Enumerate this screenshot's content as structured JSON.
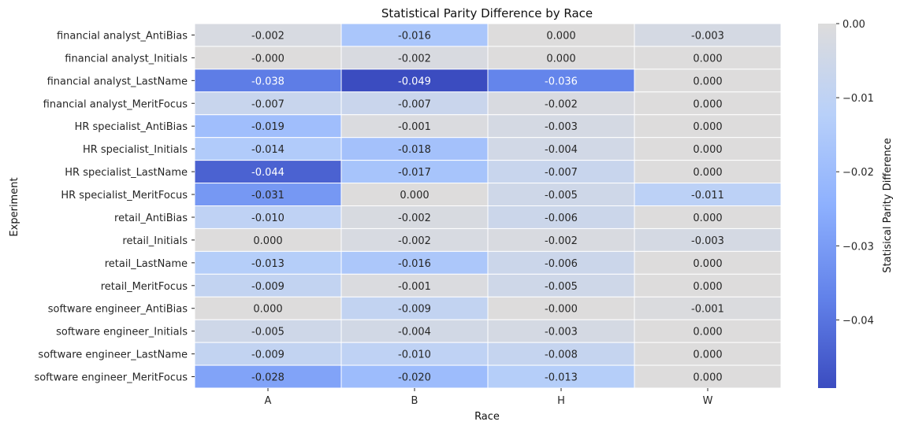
{
  "chart_data": {
    "type": "heatmap",
    "title": "Statistical Parity Difference by Race",
    "xlabel": "Race",
    "ylabel": "Experiment",
    "x_categories": [
      "A",
      "B",
      "H",
      "W"
    ],
    "y_categories": [
      "financial analyst_AntiBias",
      "financial analyst_Initials",
      "financial analyst_LastName",
      "financial analyst_MeritFocus",
      "HR specialist_AntiBias",
      "HR specialist_Initials",
      "HR specialist_LastName",
      "HR specialist_MeritFocus",
      "retail_AntiBias",
      "retail_Initials",
      "retail_LastName",
      "retail_MeritFocus",
      "software engineer_AntiBias",
      "software engineer_Initials",
      "software engineer_LastName",
      "software engineer_MeritFocus"
    ],
    "values": [
      [
        -0.0021,
        -0.0162,
        0.0001,
        -0.0031
      ],
      [
        -0.0001,
        -0.0018,
        0.0001,
        0.0001
      ],
      [
        -0.0381,
        -0.0492,
        -0.0362,
        0.0001
      ],
      [
        -0.0071,
        -0.0068,
        -0.0018,
        0.0001
      ],
      [
        -0.0192,
        -0.0011,
        -0.0029,
        0.0001
      ],
      [
        -0.0142,
        -0.0179,
        -0.0041,
        0.0001
      ],
      [
        -0.0441,
        -0.0171,
        -0.0071,
        0.0001
      ],
      [
        -0.0311,
        0.0001,
        -0.0051,
        -0.0111
      ],
      [
        -0.0101,
        -0.0019,
        -0.0061,
        0.0001
      ],
      [
        0.0001,
        -0.0021,
        -0.0018,
        -0.0029
      ],
      [
        -0.0131,
        -0.0158,
        -0.0061,
        0.0001
      ],
      [
        -0.0091,
        -0.0011,
        -0.0051,
        0.0001
      ],
      [
        0.0001,
        -0.0091,
        -0.0001,
        -0.0009
      ],
      [
        -0.0051,
        -0.0039,
        -0.0031,
        0.0001
      ],
      [
        -0.0089,
        -0.0101,
        -0.0079,
        0.0001
      ],
      [
        -0.0281,
        -0.0201,
        -0.0131,
        0.0001
      ]
    ],
    "value_labels": [
      [
        "-0.002",
        "-0.016",
        "0.000",
        "-0.003"
      ],
      [
        "-0.000",
        "-0.002",
        "0.000",
        "0.000"
      ],
      [
        "-0.038",
        "-0.049",
        "-0.036",
        "0.000"
      ],
      [
        "-0.007",
        "-0.007",
        "-0.002",
        "0.000"
      ],
      [
        "-0.019",
        "-0.001",
        "-0.003",
        "0.000"
      ],
      [
        "-0.014",
        "-0.018",
        "-0.004",
        "0.000"
      ],
      [
        "-0.044",
        "-0.017",
        "-0.007",
        "0.000"
      ],
      [
        "-0.031",
        "0.000",
        "-0.005",
        "-0.011"
      ],
      [
        "-0.010",
        "-0.002",
        "-0.006",
        "0.000"
      ],
      [
        "0.000",
        "-0.002",
        "-0.002",
        "-0.003"
      ],
      [
        "-0.013",
        "-0.016",
        "-0.006",
        "0.000"
      ],
      [
        "-0.009",
        "-0.001",
        "-0.005",
        "0.000"
      ],
      [
        "0.000",
        "-0.009",
        "-0.000",
        "-0.001"
      ],
      [
        "-0.005",
        "-0.004",
        "-0.003",
        "0.000"
      ],
      [
        "-0.009",
        "-0.010",
        "-0.008",
        "0.000"
      ],
      [
        "-0.028",
        "-0.020",
        "-0.013",
        "0.000"
      ]
    ],
    "colorbar": {
      "label": "Statisical Parity Difference",
      "range": [
        -0.0492,
        0.0
      ],
      "ticks": [
        0.0,
        -0.01,
        -0.02,
        -0.03,
        -0.04
      ],
      "tick_labels": [
        "0.00",
        "−0.01",
        "−0.02",
        "−0.03",
        "−0.04"
      ],
      "colormap": "coolwarm",
      "low_color": "#3b4cc0",
      "high_color": "#dddcdc"
    },
    "grid": false,
    "legend": "colorbar-right"
  }
}
